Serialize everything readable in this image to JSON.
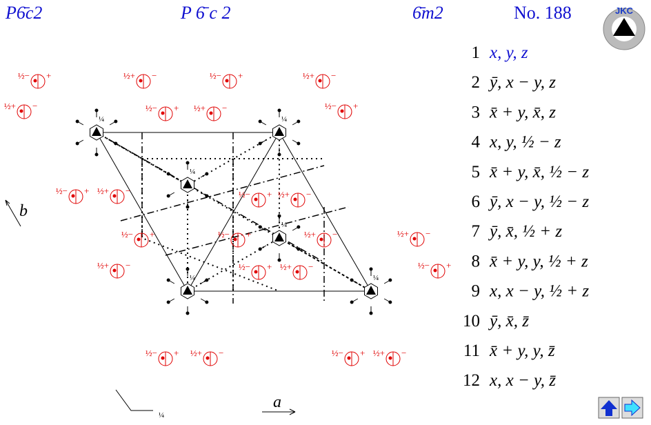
{
  "header": {
    "symbol": "P6̄c2",
    "full_symbol": "P 6̄ c 2",
    "point_group": "6̄m2",
    "number": "No. 188"
  },
  "logo": "JKC",
  "axes": {
    "a": "a",
    "b": "b",
    "origin_height": "¼"
  },
  "diagram": {
    "heights": [
      "¼",
      "¼",
      "¼",
      "¼",
      "¼",
      "¼"
    ],
    "markers": [
      {
        "left": "½−",
        "right": "+"
      },
      {
        "left": "½+",
        "right": "−"
      },
      {
        "left": "½−",
        "right": "+"
      },
      {
        "left": "½+",
        "right": "−"
      },
      {
        "left": "½+",
        "right": "−"
      },
      {
        "left": "½−",
        "right": "+"
      },
      {
        "left": "½+",
        "right": "−"
      },
      {
        "left": "½−",
        "right": "+"
      },
      {
        "left": "½−",
        "right": "+"
      },
      {
        "left": "½+",
        "right": "−"
      },
      {
        "left": "½−",
        "right": "+"
      },
      {
        "left": "½+",
        "right": "−"
      },
      {
        "left": "½−",
        "right": "+"
      },
      {
        "left": "½−",
        "right": "+"
      },
      {
        "left": "½+",
        "right": "−"
      },
      {
        "left": "½+",
        "right": "−"
      },
      {
        "left": "½+",
        "right": "−"
      },
      {
        "left": "½−",
        "right": "+"
      },
      {
        "left": "½+",
        "right": "−"
      },
      {
        "left": "½−",
        "right": "+"
      },
      {
        "left": "½−",
        "right": "+"
      },
      {
        "left": "½+",
        "right": "−"
      },
      {
        "left": "½−",
        "right": "+"
      },
      {
        "left": "½+",
        "right": "−"
      }
    ]
  },
  "positions": [
    {
      "n": "1",
      "coords": "x, y, z"
    },
    {
      "n": "2",
      "coords": "ȳ, x − y, z"
    },
    {
      "n": "3",
      "coords": "x̄ + y, x̄, z"
    },
    {
      "n": "4",
      "coords": "x, y, ½ − z"
    },
    {
      "n": "5",
      "coords": "x̄ + y, x̄, ½ − z"
    },
    {
      "n": "6",
      "coords": "ȳ, x − y, ½ − z"
    },
    {
      "n": "7",
      "coords": "ȳ, x̄, ½ + z"
    },
    {
      "n": "8",
      "coords": "x̄ + y, y, ½ + z"
    },
    {
      "n": "9",
      "coords": "x, x − y, ½ + z"
    },
    {
      "n": "10",
      "coords": "ȳ, x̄, z̄"
    },
    {
      "n": "11",
      "coords": "x̄ + y, y, z̄"
    },
    {
      "n": "12",
      "coords": "x, x − y, z̄"
    }
  ]
}
